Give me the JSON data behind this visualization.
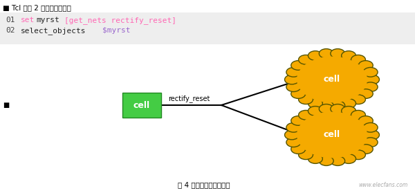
{
  "title_text": "■ Tcl 脚本 2 选中高扇出信号",
  "code_bg": "#eeeeee",
  "cell_box_color": "#44cc44",
  "cell_text_color": "#ffffff",
  "cloud_fill": "#f5aa00",
  "cloud_edge": "#555500",
  "net_label": "rectify_reset",
  "cell_label": "cell",
  "caption": "图 4 高扇出信号相关电路",
  "watermark": "www.elecfans.com",
  "bg_color": "#ffffff",
  "keyword_color": "#ff69b4",
  "bracket_color": "#ff69b4",
  "var_color": "#9966cc",
  "num_color": "#444444",
  "code_text_color": "#222222"
}
